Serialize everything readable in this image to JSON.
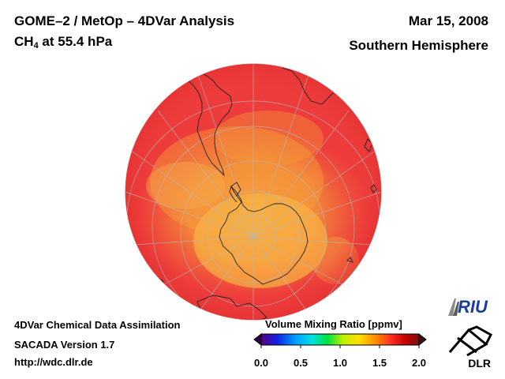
{
  "header": {
    "title": "GOME–2 / MetOp – 4DVar Analysis",
    "species": "CH",
    "species_sub": "4",
    "level": " at 55.4 hPa",
    "date": "Mar 15, 2008",
    "region": "Southern Hemisphere"
  },
  "footer": {
    "line1": "4DVar Chemical Data Assimilation",
    "line2": "SACADA Version 1.7",
    "line3": "http://wdc.dlr.de"
  },
  "colorbar": {
    "title": "Volume Mixing Ratio [ppmv]",
    "ticks": [
      "0.0",
      "0.5",
      "1.0",
      "1.5",
      "2.0"
    ],
    "min": 0.0,
    "max": 2.0,
    "colors": [
      "#5a0080",
      "#1020e0",
      "#00a0ff",
      "#00e0e0",
      "#00e040",
      "#c0f000",
      "#ffe000",
      "#ff9000",
      "#ff3020",
      "#c00000",
      "#7a1010"
    ]
  },
  "map": {
    "projection": "orthographic, south pole centred",
    "background_value_color": "#ee3b3b",
    "polar_value_color": "#f7a53a"
  },
  "logos": {
    "riu": "RIU",
    "dlr": "DLR"
  }
}
